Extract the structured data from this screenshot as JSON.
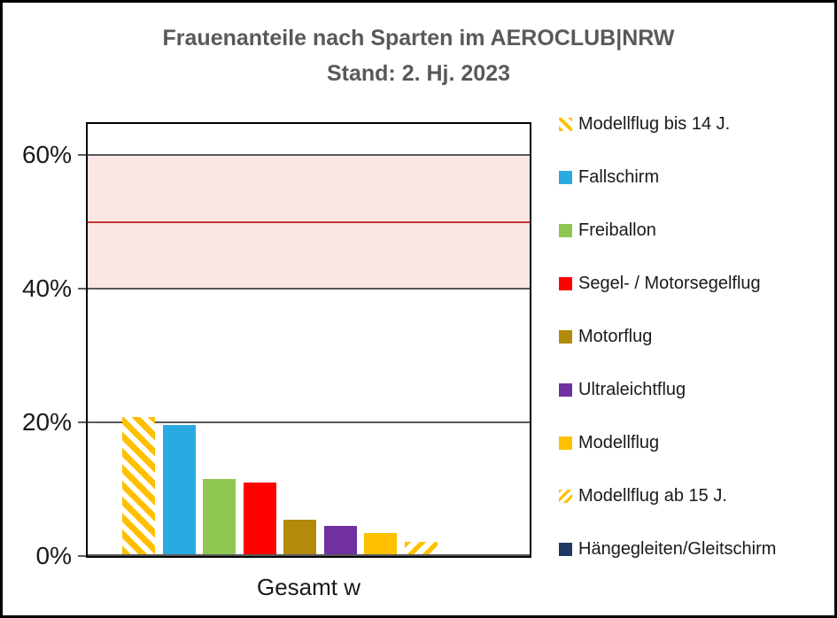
{
  "chart_data": {
    "type": "bar",
    "title": "Frauenanteile nach Sparten im AEROCLUB|NRW",
    "subtitle": "Stand: 2. Hj. 2023",
    "categories": [
      "Gesamt w"
    ],
    "xlabel": "Gesamt w",
    "ylabel": "",
    "ylim": [
      0,
      64.7
    ],
    "grid": true,
    "legend_position": "right",
    "yticks": [
      {
        "value": 0,
        "label": "0%"
      },
      {
        "value": 20,
        "label": "20%"
      },
      {
        "value": 40,
        "label": "40%"
      },
      {
        "value": 60,
        "label": "60%"
      }
    ],
    "reference_band": {
      "from": 40,
      "to": 60,
      "fill": "#FBE6E6",
      "midline_value": 50,
      "midline_color": "#CC3333"
    },
    "series": [
      {
        "name": "Modellflug bis 14 J.",
        "values": [
          20.5
        ],
        "color": "#FFC000",
        "pattern": "hatch-backslash"
      },
      {
        "name": "Fallschirm",
        "values": [
          19.3
        ],
        "color": "#29ABE2",
        "pattern": "solid"
      },
      {
        "name": "Freiballon",
        "values": [
          11.3
        ],
        "color": "#8FC652",
        "pattern": "solid"
      },
      {
        "name": "Segel- / Motorsegelflug",
        "values": [
          10.7
        ],
        "color": "#FE0000",
        "pattern": "solid"
      },
      {
        "name": "Motorflug",
        "values": [
          5.2
        ],
        "color": "#B28B0B",
        "pattern": "solid"
      },
      {
        "name": "Ultraleichtflug",
        "values": [
          4.2
        ],
        "color": "#7030A0",
        "pattern": "solid"
      },
      {
        "name": "Modellflug",
        "values": [
          3.2
        ],
        "color": "#FFC000",
        "pattern": "solid"
      },
      {
        "name": "Modellflug ab 15 J.",
        "values": [
          1.8
        ],
        "color": "#FFC000",
        "pattern": "hatch-slash"
      },
      {
        "name": "Hängegleiten/Gleitschirm",
        "values": [
          0
        ],
        "color": "#1F3864",
        "pattern": "solid"
      }
    ]
  }
}
